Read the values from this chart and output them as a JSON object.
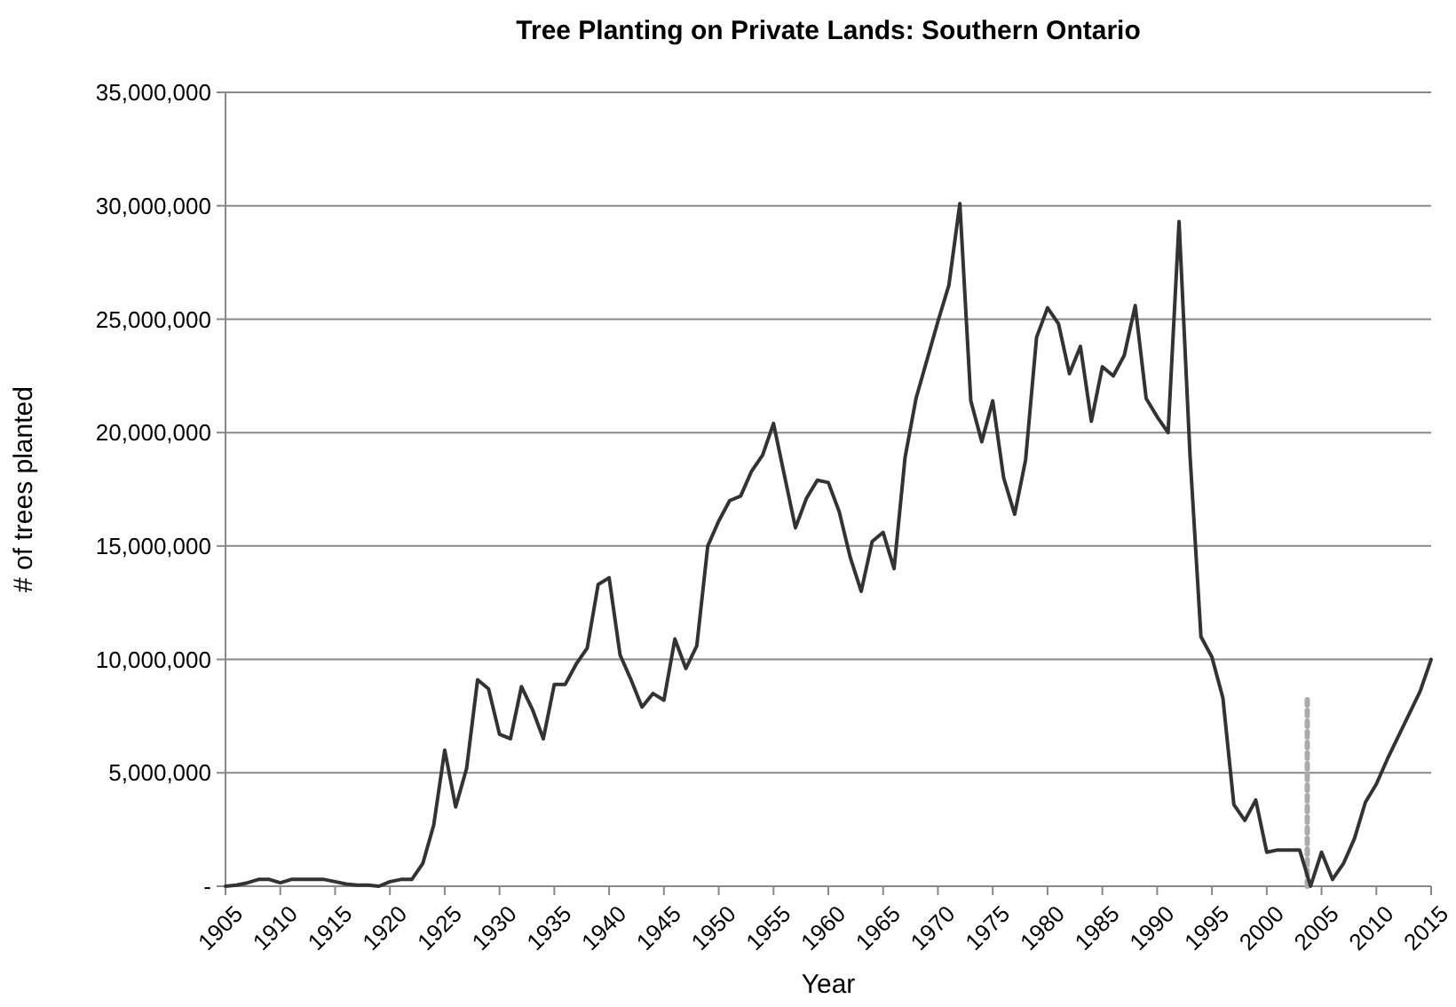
{
  "chart_data": {
    "type": "line",
    "title": "Tree Planting on Private Lands: Southern Ontario",
    "xlabel": "Year",
    "ylabel": "# of trees planted",
    "x": [
      1905,
      1906,
      1907,
      1908,
      1909,
      1910,
      1911,
      1912,
      1913,
      1914,
      1915,
      1916,
      1917,
      1918,
      1919,
      1920,
      1921,
      1922,
      1923,
      1924,
      1925,
      1926,
      1927,
      1928,
      1929,
      1930,
      1931,
      1932,
      1933,
      1934,
      1935,
      1936,
      1937,
      1938,
      1939,
      1940,
      1941,
      1942,
      1943,
      1944,
      1945,
      1946,
      1947,
      1948,
      1949,
      1950,
      1951,
      1952,
      1953,
      1954,
      1955,
      1956,
      1957,
      1958,
      1959,
      1960,
      1961,
      1962,
      1963,
      1964,
      1965,
      1966,
      1967,
      1968,
      1969,
      1970,
      1971,
      1972,
      1973,
      1974,
      1975,
      1976,
      1977,
      1978,
      1979,
      1980,
      1981,
      1982,
      1983,
      1984,
      1985,
      1986,
      1987,
      1988,
      1989,
      1990,
      1991,
      1992,
      1993,
      1994,
      1995,
      1996,
      1997,
      1998,
      1999,
      2000,
      2001,
      2002,
      2003,
      2004,
      2005,
      2006,
      2007,
      2008,
      2009,
      2010,
      2011,
      2012,
      2013,
      2014,
      2015
    ],
    "series": [
      {
        "color": "#333333",
        "line_style": "solid",
        "values": [
          0,
          50000,
          150000,
          300000,
          300000,
          150000,
          300000,
          300000,
          300000,
          300000,
          200000,
          100000,
          50000,
          50000,
          0,
          200000,
          300000,
          300000,
          1000000,
          2700000,
          6000000,
          3500000,
          5200000,
          9100000,
          8700000,
          6700000,
          6500000,
          8800000,
          7800000,
          6500000,
          8900000,
          8900000,
          9800000,
          10500000,
          13300000,
          13600000,
          10200000,
          9100000,
          7900000,
          8500000,
          8200000,
          10900000,
          9600000,
          10600000,
          15000000,
          16100000,
          17000000,
          17200000,
          18300000,
          19000000,
          20400000,
          18100000,
          15800000,
          17100000,
          17900000,
          17800000,
          16500000,
          14500000,
          13000000,
          15200000,
          15600000,
          14000000,
          18900000,
          21500000,
          23200000,
          24900000,
          26500000,
          30100000,
          21400000,
          19600000,
          21400000,
          18000000,
          16400000,
          18800000,
          24200000,
          25500000,
          24800000,
          22600000,
          23800000,
          20500000,
          22900000,
          22500000,
          23400000,
          25600000,
          21500000,
          20700000,
          20000000,
          29300000,
          19000000,
          11000000,
          10100000,
          8300000,
          3600000,
          2900000,
          3800000,
          1500000,
          1600000,
          1600000,
          1600000,
          0,
          1500000,
          300000,
          1000000,
          2100000,
          3700000,
          4500000,
          5600000,
          6600000,
          7600000,
          8600000,
          10000000
        ]
      },
      {
        "type": "line",
        "color": "#aaaaaa",
        "line_style": "dotted",
        "x": [
          2003.7,
          2003.7
        ],
        "values": [
          0,
          8300000
        ]
      }
    ],
    "xlim": [
      1905,
      2015
    ],
    "xticks": [
      1905,
      1910,
      1915,
      1920,
      1925,
      1930,
      1935,
      1940,
      1945,
      1950,
      1955,
      1960,
      1965,
      1970,
      1975,
      1980,
      1985,
      1990,
      1995,
      2000,
      2005,
      2010,
      2015
    ],
    "ylim": [
      0,
      35000000
    ],
    "yticks": [
      {
        "value": 0,
        "label": "-"
      },
      {
        "value": 5000000,
        "label": "5,000,000"
      },
      {
        "value": 10000000,
        "label": "10,000,000"
      },
      {
        "value": 15000000,
        "label": "15,000,000"
      },
      {
        "value": 20000000,
        "label": "20,000,000"
      },
      {
        "value": 25000000,
        "label": "25,000,000"
      },
      {
        "value": 30000000,
        "label": "30,000,000"
      },
      {
        "value": 35000000,
        "label": "35,000,000"
      }
    ],
    "grid": "y",
    "marker": "none"
  }
}
